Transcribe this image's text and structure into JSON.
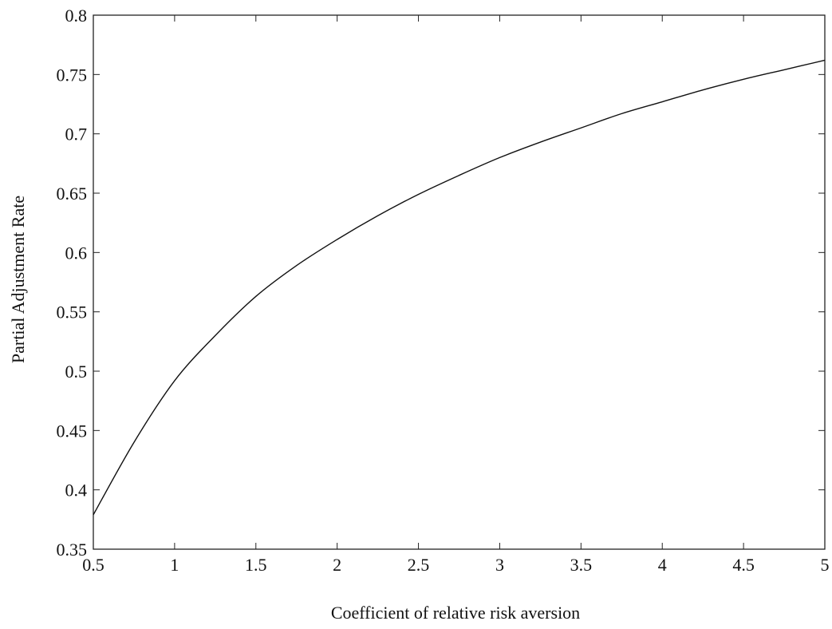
{
  "chart_data": {
    "type": "line",
    "title": "",
    "xlabel": "Coefficient of relative risk aversion",
    "ylabel": "Partial Adjustment Rate",
    "xlim": [
      0.5,
      5
    ],
    "ylim": [
      0.35,
      0.8
    ],
    "grid": false,
    "legend": "none",
    "xticks": [
      0.5,
      1,
      1.5,
      2,
      2.5,
      3,
      3.5,
      4,
      4.5,
      5
    ],
    "xtick_labels": [
      "0.5",
      "1",
      "1.5",
      "2",
      "2.5",
      "3",
      "3.5",
      "4",
      "4.5",
      "5"
    ],
    "yticks": [
      0.35,
      0.4,
      0.45,
      0.5,
      0.55,
      0.6,
      0.65,
      0.7,
      0.75,
      0.8
    ],
    "ytick_labels": [
      "0.35",
      "0.4",
      "0.45",
      "0.5",
      "0.55",
      "0.6",
      "0.65",
      "0.7",
      "0.75",
      "0.8"
    ],
    "series": [
      {
        "x": [
          0.5,
          0.75,
          1,
          1.25,
          1.5,
          1.75,
          2,
          2.25,
          2.5,
          2.75,
          3,
          3.25,
          3.5,
          3.75,
          4,
          4.25,
          4.5,
          4.75,
          5
        ],
        "y": [
          0.379,
          0.44,
          0.492,
          0.53,
          0.563,
          0.589,
          0.611,
          0.631,
          0.649,
          0.665,
          0.68,
          0.693,
          0.705,
          0.717,
          0.727,
          0.737,
          0.746,
          0.754,
          0.762
        ],
        "color": "#111111"
      }
    ]
  }
}
